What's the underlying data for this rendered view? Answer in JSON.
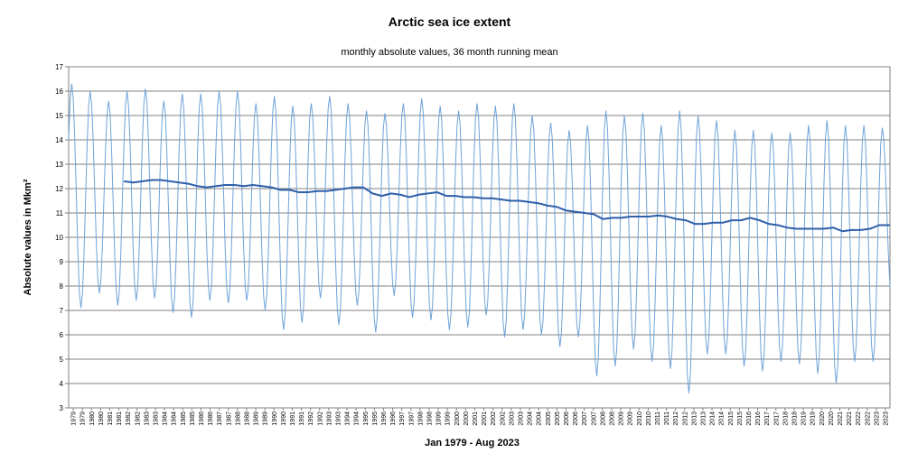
{
  "chart_data": {
    "type": "line",
    "title": "Arctic sea ice extent",
    "subtitle": "monthly absolute values, 36 month running mean",
    "xlabel": "Jan 1979 - Aug 2023",
    "ylabel": "Absolute values in Mkm²",
    "ylim": [
      3,
      17
    ],
    "yticks": [
      3,
      4,
      5,
      6,
      7,
      8,
      9,
      10,
      11,
      12,
      13,
      14,
      15,
      16,
      17
    ],
    "grid": "horizontal",
    "x_start": "1979-01",
    "x_end": "2023-08",
    "x_tick_labels": [
      "1979",
      "1979",
      "1980",
      "1980",
      "1981",
      "1981",
      "1982",
      "1982",
      "1983",
      "1983",
      "1984",
      "1984",
      "1985",
      "1985",
      "1986",
      "1986",
      "1987",
      "1987",
      "1988",
      "1988",
      "1989",
      "1989",
      "1990",
      "1990",
      "1991",
      "1991",
      "1992",
      "1992",
      "1993",
      "1993",
      "1994",
      "1994",
      "1995",
      "1995",
      "1996",
      "1996",
      "1997",
      "1997",
      "1998",
      "1998",
      "1999",
      "1999",
      "2000",
      "2000",
      "2001",
      "2001",
      "2002",
      "2002",
      "2003",
      "2003",
      "2004",
      "2004",
      "2005",
      "2005",
      "2006",
      "2006",
      "2007",
      "2007",
      "2008",
      "2008",
      "2009",
      "2009",
      "2010",
      "2010",
      "2011",
      "2011",
      "2012",
      "2012",
      "2013",
      "2013",
      "2014",
      "2014",
      "2015",
      "2015",
      "2016",
      "2016",
      "2017",
      "2017",
      "2018",
      "2018",
      "2019",
      "2019",
      "2020",
      "2020",
      "2021",
      "2021",
      "2022",
      "2022",
      "2023",
      "2023"
    ],
    "series": [
      {
        "kind": "monthly absolute values",
        "color": "#6fa3d9",
        "yearly": [
          {
            "year": 1979,
            "max": 16.3,
            "min": 7.1
          },
          {
            "year": 1980,
            "max": 16.0,
            "min": 7.7
          },
          {
            "year": 1981,
            "max": 15.6,
            "min": 7.2
          },
          {
            "year": 1982,
            "max": 16.0,
            "min": 7.4
          },
          {
            "year": 1983,
            "max": 16.1,
            "min": 7.5
          },
          {
            "year": 1984,
            "max": 15.6,
            "min": 6.9
          },
          {
            "year": 1985,
            "max": 15.9,
            "min": 6.7
          },
          {
            "year": 1986,
            "max": 15.9,
            "min": 7.4
          },
          {
            "year": 1987,
            "max": 16.0,
            "min": 7.3
          },
          {
            "year": 1988,
            "max": 16.0,
            "min": 7.4
          },
          {
            "year": 1989,
            "max": 15.5,
            "min": 7.0
          },
          {
            "year": 1990,
            "max": 15.8,
            "min": 6.2
          },
          {
            "year": 1991,
            "max": 15.4,
            "min": 6.5
          },
          {
            "year": 1992,
            "max": 15.5,
            "min": 7.5
          },
          {
            "year": 1993,
            "max": 15.8,
            "min": 6.4
          },
          {
            "year": 1994,
            "max": 15.5,
            "min": 7.2
          },
          {
            "year": 1995,
            "max": 15.2,
            "min": 6.1
          },
          {
            "year": 1996,
            "max": 15.1,
            "min": 7.6
          },
          {
            "year": 1997,
            "max": 15.5,
            "min": 6.7
          },
          {
            "year": 1998,
            "max": 15.7,
            "min": 6.6
          },
          {
            "year": 1999,
            "max": 15.4,
            "min": 6.2
          },
          {
            "year": 2000,
            "max": 15.2,
            "min": 6.3
          },
          {
            "year": 2001,
            "max": 15.5,
            "min": 6.8
          },
          {
            "year": 2002,
            "max": 15.4,
            "min": 5.9
          },
          {
            "year": 2003,
            "max": 15.5,
            "min": 6.2
          },
          {
            "year": 2004,
            "max": 15.0,
            "min": 6.0
          },
          {
            "year": 2005,
            "max": 14.7,
            "min": 5.5
          },
          {
            "year": 2006,
            "max": 14.4,
            "min": 5.9
          },
          {
            "year": 2007,
            "max": 14.6,
            "min": 4.3
          },
          {
            "year": 2008,
            "max": 15.2,
            "min": 4.7
          },
          {
            "year": 2009,
            "max": 15.0,
            "min": 5.4
          },
          {
            "year": 2010,
            "max": 15.1,
            "min": 4.9
          },
          {
            "year": 2011,
            "max": 14.6,
            "min": 4.6
          },
          {
            "year": 2012,
            "max": 15.2,
            "min": 3.6
          },
          {
            "year": 2013,
            "max": 15.0,
            "min": 5.2
          },
          {
            "year": 2014,
            "max": 14.8,
            "min": 5.2
          },
          {
            "year": 2015,
            "max": 14.4,
            "min": 4.7
          },
          {
            "year": 2016,
            "max": 14.4,
            "min": 4.5
          },
          {
            "year": 2017,
            "max": 14.3,
            "min": 4.9
          },
          {
            "year": 2018,
            "max": 14.3,
            "min": 4.8
          },
          {
            "year": 2019,
            "max": 14.6,
            "min": 4.4
          },
          {
            "year": 2020,
            "max": 14.8,
            "min": 4.0
          },
          {
            "year": 2021,
            "max": 14.6,
            "min": 4.9
          },
          {
            "year": 2022,
            "max": 14.6,
            "min": 4.9
          },
          {
            "year": 2023,
            "max": 14.5,
            "min": 7.5
          }
        ]
      },
      {
        "kind": "36 month running mean",
        "color": "#2f5fa8",
        "x": [
          "1982-01",
          "1982-07",
          "1983-01",
          "1983-07",
          "1984-01",
          "1984-07",
          "1985-01",
          "1985-07",
          "1986-01",
          "1986-07",
          "1987-01",
          "1987-07",
          "1988-01",
          "1988-07",
          "1989-01",
          "1989-07",
          "1990-01",
          "1990-07",
          "1991-01",
          "1991-07",
          "1992-01",
          "1992-07",
          "1993-01",
          "1993-07",
          "1994-01",
          "1994-07",
          "1995-01",
          "1995-07",
          "1996-01",
          "1996-07",
          "1997-01",
          "1997-07",
          "1998-01",
          "1998-07",
          "1999-01",
          "1999-07",
          "2000-01",
          "2000-07",
          "2001-01",
          "2001-07",
          "2002-01",
          "2002-07",
          "2003-01",
          "2003-07",
          "2004-01",
          "2004-07",
          "2005-01",
          "2005-07",
          "2006-01",
          "2006-07",
          "2007-01",
          "2007-07",
          "2008-01",
          "2008-07",
          "2009-01",
          "2009-07",
          "2010-01",
          "2010-07",
          "2011-01",
          "2011-07",
          "2012-01",
          "2012-07",
          "2013-01",
          "2013-07",
          "2014-01",
          "2014-07",
          "2015-01",
          "2015-07",
          "2016-01",
          "2016-07",
          "2017-01",
          "2017-07",
          "2018-01",
          "2018-07",
          "2019-01",
          "2019-07",
          "2020-01",
          "2020-07",
          "2021-01",
          "2021-07",
          "2022-01",
          "2022-07",
          "2023-01",
          "2023-08"
        ],
        "y": [
          12.3,
          12.25,
          12.3,
          12.35,
          12.35,
          12.3,
          12.25,
          12.2,
          12.1,
          12.05,
          12.1,
          12.15,
          12.15,
          12.1,
          12.15,
          12.1,
          12.05,
          11.95,
          11.95,
          11.85,
          11.85,
          11.9,
          11.9,
          11.95,
          12.0,
          12.05,
          12.05,
          11.8,
          11.7,
          11.8,
          11.75,
          11.65,
          11.75,
          11.8,
          11.85,
          11.7,
          11.7,
          11.65,
          11.65,
          11.6,
          11.6,
          11.55,
          11.5,
          11.5,
          11.45,
          11.4,
          11.3,
          11.25,
          11.1,
          11.05,
          11.0,
          10.95,
          10.75,
          10.8,
          10.8,
          10.85,
          10.85,
          10.85,
          10.9,
          10.85,
          10.75,
          10.7,
          10.55,
          10.55,
          10.6,
          10.6,
          10.7,
          10.7,
          10.8,
          10.7,
          10.55,
          10.5,
          10.4,
          10.35,
          10.35,
          10.35,
          10.35,
          10.4,
          10.25,
          10.3,
          10.3,
          10.35,
          10.5,
          10.5
        ]
      }
    ]
  }
}
